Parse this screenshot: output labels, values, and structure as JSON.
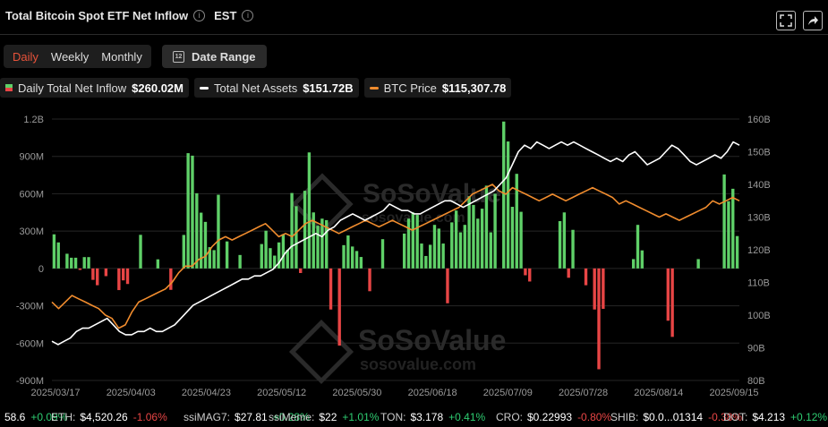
{
  "header": {
    "title": "Total Bitcoin Spot ETF Net Inflow",
    "timezone": "EST"
  },
  "tabs": [
    {
      "label": "Daily",
      "active": true
    },
    {
      "label": "Weekly",
      "active": false
    },
    {
      "label": "Monthly",
      "active": false
    }
  ],
  "date_range": {
    "label": "Date Range",
    "icon_text": "12"
  },
  "legend": [
    {
      "label": "Daily Total Net Inflow",
      "value": "$260.02M",
      "color": "#5fd068"
    },
    {
      "label": "Total Net Assets",
      "value": "$151.72B",
      "color": "#ffffff"
    },
    {
      "label": "BTC Price",
      "value": "$115,307.78",
      "color": "#f08c2e"
    }
  ],
  "watermark": {
    "brand": "SoSoValue",
    "url": "sosovalue.com"
  },
  "colors": {
    "inflow": "#5fd068",
    "outflow": "#e84545",
    "assets": "#ffffff",
    "price": "#f08c2e"
  },
  "ticker": [
    {
      "name": "",
      "price": "58.6",
      "change": "+0.09%",
      "dir": "up"
    },
    {
      "name": "ETH:",
      "price": "$4,520.26",
      "change": "-1.06%",
      "dir": "dn"
    },
    {
      "name": "ssiMAG7:",
      "price": "$27.81",
      "change": "+0.28%",
      "dir": "up"
    },
    {
      "name": "ssiMeme:",
      "price": "$22",
      "change": "+1.01%",
      "dir": "up"
    },
    {
      "name": "TON:",
      "price": "$3.178",
      "change": "+0.41%",
      "dir": "up"
    },
    {
      "name": "CRO:",
      "price": "$0.22993",
      "change": "-0.80%",
      "dir": "dn"
    },
    {
      "name": "SHIB:",
      "price": "$0.0...01314",
      "change": "-0.38%",
      "dir": "dn"
    },
    {
      "name": "DOT:",
      "price": "$4.213",
      "change": "+0.12%",
      "dir": "up"
    }
  ],
  "chart_data": {
    "type": "bar",
    "title": "Total Bitcoin Spot ETF Net Inflow",
    "x_tick_labels": [
      "2025/03/17",
      "2025/04/03",
      "2025/04/23",
      "2025/05/12",
      "2025/05/30",
      "2025/06/18",
      "2025/07/09",
      "2025/07/28",
      "2025/08/14",
      "2025/09/15"
    ],
    "left_axis": {
      "ticks": [
        "1.2B",
        "900M",
        "600M",
        "300M",
        "0",
        "-300M",
        "-600M",
        "-900M"
      ],
      "range_millions": [
        -900,
        1200
      ]
    },
    "right_axis": {
      "ticks": [
        "160B",
        "150B",
        "140B",
        "130B",
        "120B",
        "110B",
        "100B",
        "90B",
        "80B"
      ],
      "range_billions": [
        80,
        160
      ]
    },
    "grid": "horizontal",
    "series": [
      {
        "name": "Daily Total Net Inflow",
        "type": "bar",
        "unit": "USD millions",
        "values": [
          274,
          209,
          0,
          118,
          86,
          86,
          -12,
          91,
          91,
          -92,
          -135,
          0,
          -62,
          0,
          0,
          -174,
          -96,
          -125,
          0,
          0,
          270,
          0,
          0,
          0,
          73,
          0,
          0,
          -172,
          0,
          0,
          269,
          926,
          906,
          604,
          448,
          374,
          171,
          147,
          592,
          0,
          217,
          0,
          0,
          108,
          0,
          0,
          0,
          0,
          196,
          303,
          163,
          103,
          209,
          276,
          150,
          606,
          500,
          -37,
          624,
          932,
          450,
          343,
          400,
          388,
          -330,
          0,
          -620,
          187,
          265,
          176,
          140,
          92,
          0,
          -183,
          0,
          0,
          235,
          0,
          0,
          0,
          0,
          280,
          400,
          450,
          430,
          200,
          100,
          190,
          350,
          320,
          200,
          -280,
          370,
          465,
          290,
          350,
          580,
          510,
          400,
          480,
          665,
          290,
          600,
          0,
          1180,
          1020,
          495,
          760,
          455,
          -55,
          -105,
          0,
          0,
          0,
          0,
          0,
          0,
          380,
          450,
          -75,
          310,
          0,
          0,
          -135,
          0,
          -330,
          -810,
          -325,
          0,
          0,
          0,
          0,
          0,
          0,
          75,
          350,
          145,
          0,
          0,
          0,
          0,
          0,
          -420,
          -550,
          0,
          0,
          0,
          0,
          0,
          75,
          0,
          0,
          0,
          0,
          0,
          755,
          540,
          640,
          260
        ]
      },
      {
        "name": "Total Net Assets",
        "type": "line",
        "unit": "USD billions",
        "values": [
          92,
          91,
          92,
          93,
          95,
          96,
          96,
          97,
          98,
          99,
          97,
          95,
          94,
          94,
          95,
          95,
          96,
          95,
          95,
          96,
          97,
          99,
          101,
          103,
          104,
          105,
          106,
          107,
          108,
          109,
          110,
          111,
          111,
          112,
          112,
          113,
          114,
          116,
          119,
          121,
          122,
          123,
          124,
          125,
          124,
          126,
          127,
          129,
          130,
          131,
          130,
          129,
          130,
          131,
          132,
          134,
          133,
          132,
          132,
          131,
          131,
          132,
          133,
          134,
          135,
          135,
          134,
          133,
          134,
          135,
          136,
          137,
          138,
          140,
          142,
          146,
          150,
          152,
          151,
          153,
          152,
          151,
          152,
          153,
          152,
          153,
          152,
          151,
          150,
          149,
          148,
          147,
          148,
          147,
          149,
          150,
          148,
          146,
          147,
          148,
          150,
          152,
          151,
          149,
          147,
          146,
          147,
          148,
          149,
          148,
          150,
          153,
          152
        ]
      },
      {
        "name": "BTC Price",
        "type": "line",
        "unit": "USD",
        "values": [
          84000,
          82000,
          84000,
          86000,
          85000,
          84000,
          83000,
          82000,
          80000,
          79000,
          76000,
          77000,
          81000,
          84000,
          85000,
          86000,
          87000,
          88000,
          90000,
          93000,
          95000,
          95000,
          97000,
          98000,
          101000,
          103000,
          104000,
          103000,
          104000,
          105000,
          106000,
          107000,
          108000,
          106000,
          104000,
          105000,
          104000,
          106000,
          108000,
          109000,
          108000,
          107000,
          106000,
          105000,
          106000,
          107000,
          108000,
          109000,
          108000,
          107000,
          108000,
          109000,
          108000,
          107000,
          106000,
          107000,
          108000,
          109000,
          110000,
          111000,
          112000,
          113000,
          115000,
          117000,
          118000,
          119000,
          120000,
          118000,
          117000,
          119000,
          118000,
          117000,
          116000,
          115000,
          116000,
          117000,
          116000,
          115000,
          116000,
          117000,
          118000,
          119000,
          118000,
          117000,
          116000,
          114000,
          115000,
          114000,
          113000,
          112000,
          111000,
          110000,
          111000,
          110000,
          109000,
          110000,
          111000,
          112000,
          113000,
          115000,
          114000,
          115000,
          116000,
          115000
        ]
      }
    ]
  }
}
